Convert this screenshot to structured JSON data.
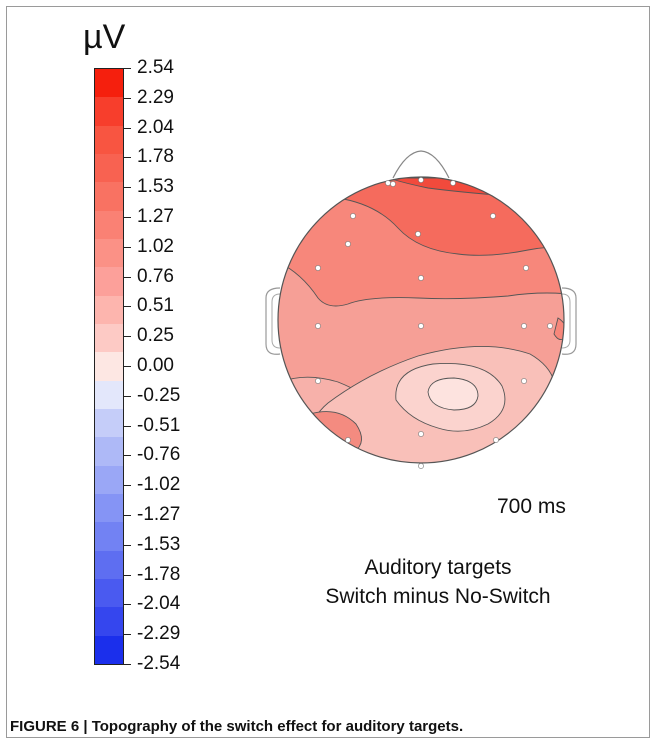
{
  "figure": {
    "unit": "µV",
    "time": "700 ms",
    "condition_line1": "Auditory targets",
    "condition_line2": "Switch minus No-Switch",
    "caption": "FIGURE 6 | Topography of the switch effect for auditory targets."
  },
  "scale": {
    "ticks": [
      "2.54",
      "2.29",
      "2.04",
      "1.78",
      "1.53",
      "1.27",
      "1.02",
      "0.76",
      "0.51",
      "0.25",
      "0.00",
      "-0.25",
      "-0.51",
      "-0.76",
      "-1.02",
      "-1.27",
      "-1.53",
      "-1.78",
      "-2.04",
      "-2.29",
      "-2.54"
    ],
    "colors": [
      "#f51f0d",
      "#f73e2c",
      "#f85541",
      "#f86251",
      "#f97262",
      "#fa8174",
      "#fb9186",
      "#fca09a",
      "#fdb5ae",
      "#fdcac5",
      "#fde7e3",
      "#e3e7fb",
      "#c5cdf9",
      "#aeb9f7",
      "#9aa7f6",
      "#8594f5",
      "#7282f3",
      "#5e6ef1",
      "#4a5af0",
      "#3546ee",
      "#1b2fec"
    ],
    "colors_note": ""
  },
  "electrodes": {
    "count": 21
  }
}
